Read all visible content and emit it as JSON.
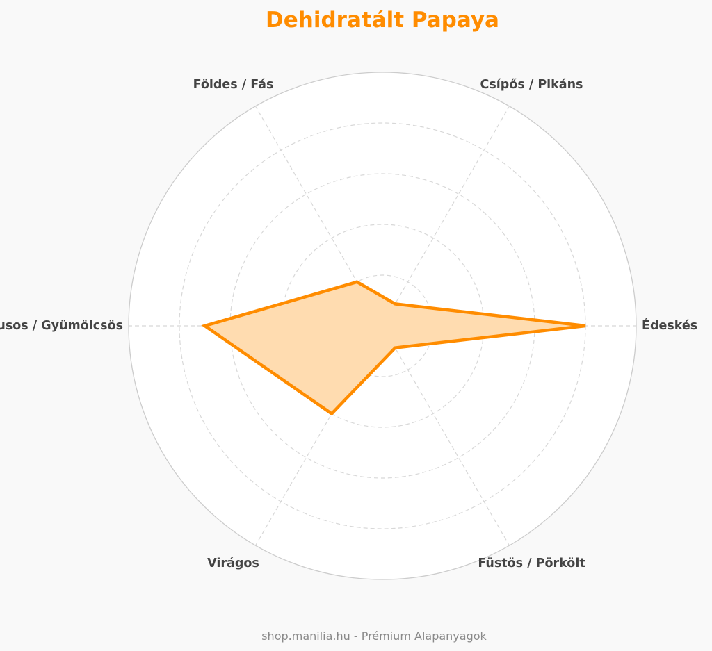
{
  "chart_data": {
    "type": "radar",
    "title": "Dehidratált Papaya",
    "categories": [
      "Édeskés",
      "Csípős / Pikáns",
      "Földes / Fás",
      "Citrusos / Gyümölcsös",
      "Virágos",
      "Füstös / Pörkölt"
    ],
    "series": [
      {
        "values": [
          8.0,
          1.0,
          2.0,
          7.0,
          4.0,
          1.0
        ]
      }
    ],
    "rlim": [
      0,
      10
    ],
    "ring_values": [
      2,
      4,
      6,
      8
    ],
    "grid": true,
    "legend": "none",
    "colors": {
      "line": "#ff8c00",
      "fill": "#ffdcb0",
      "title": "#ff8c00",
      "label": "#444444",
      "grid": "#d8d8d8",
      "outer_ring": "#cccccc",
      "plot_background": "#ffffff",
      "page_background": "#f9f9f9",
      "footer": "#8a8a8a"
    }
  },
  "footer": {
    "text": "shop.manilia.hu - Prémium Alapanyagok"
  }
}
